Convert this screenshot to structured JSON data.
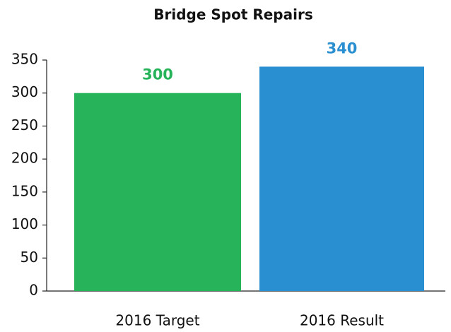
{
  "chart_data": {
    "type": "bar",
    "title": "Bridge Spot Repairs",
    "categories": [
      "2016 Target",
      "2016 Result"
    ],
    "values": [
      300,
      340
    ],
    "colors": [
      "#27b35a",
      "#2a8fd1"
    ],
    "ylim": [
      0,
      350
    ],
    "yticks": [
      0,
      50,
      100,
      150,
      200,
      250,
      300,
      350
    ],
    "grid": false
  }
}
